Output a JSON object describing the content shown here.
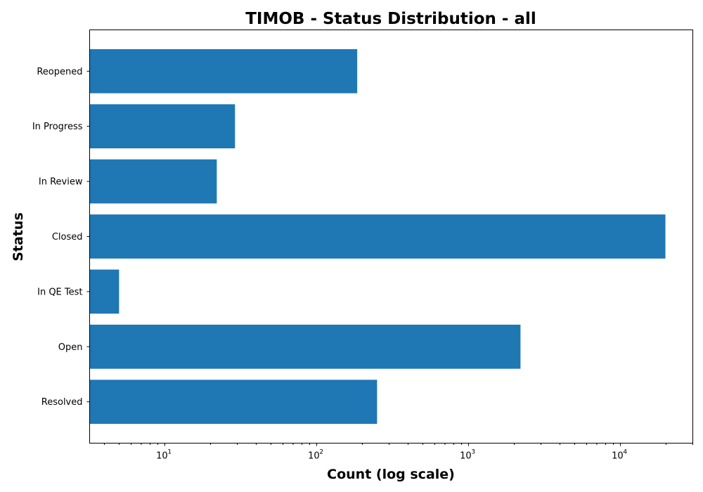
{
  "chart_data": {
    "type": "bar",
    "orientation": "horizontal",
    "title": "TIMOB - Status Distribution - all",
    "xlabel": "Count (log scale)",
    "ylabel": "Status",
    "xscale": "log",
    "xlim": [
      3.2,
      30000
    ],
    "x_ticks": [
      {
        "value": 10,
        "base": "10",
        "exp": "1"
      },
      {
        "value": 100,
        "base": "10",
        "exp": "2"
      },
      {
        "value": 1000,
        "base": "10",
        "exp": "3"
      },
      {
        "value": 10000,
        "base": "10",
        "exp": "4"
      }
    ],
    "categories": [
      "Resolved",
      "Open",
      "In QE Test",
      "Closed",
      "In Review",
      "In Progress",
      "Reopened"
    ],
    "values": [
      250,
      2200,
      5,
      19800,
      22,
      29,
      185
    ],
    "bar_color": "#1f77b4",
    "grid": false,
    "legend": false
  }
}
